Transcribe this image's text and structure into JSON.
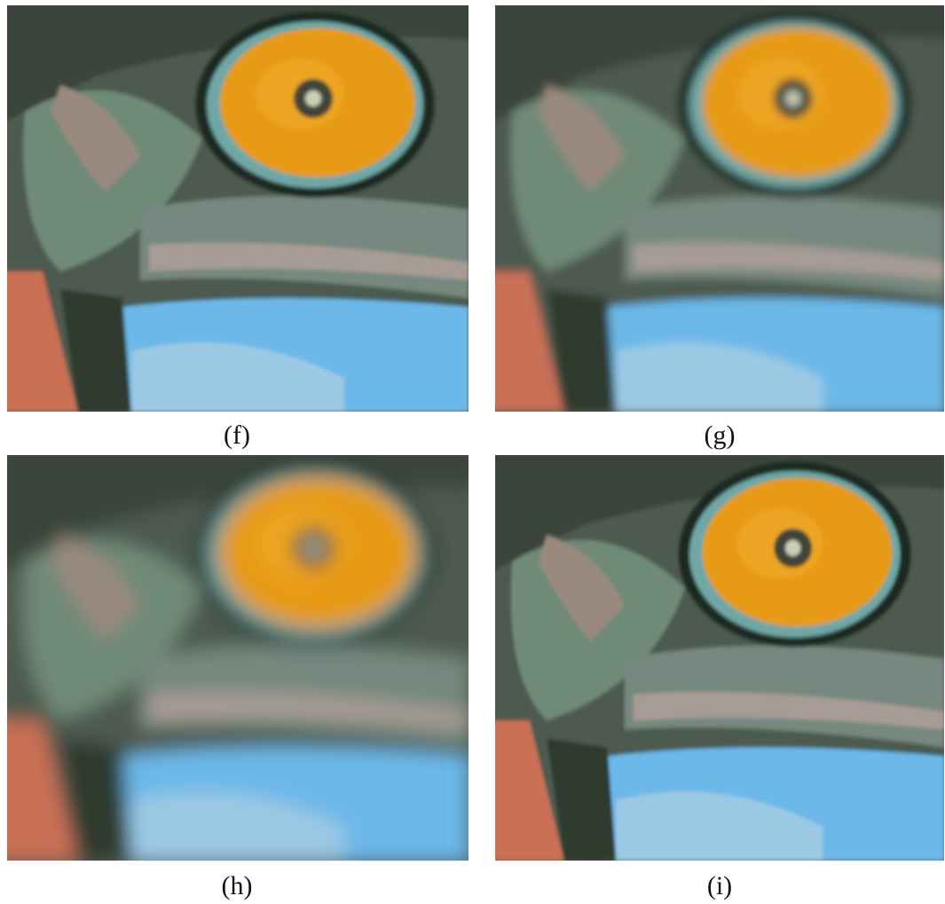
{
  "panels": [
    {
      "label": "(f)"
    },
    {
      "label": "(g)"
    },
    {
      "label": "(h)"
    },
    {
      "label": "(i)"
    }
  ]
}
